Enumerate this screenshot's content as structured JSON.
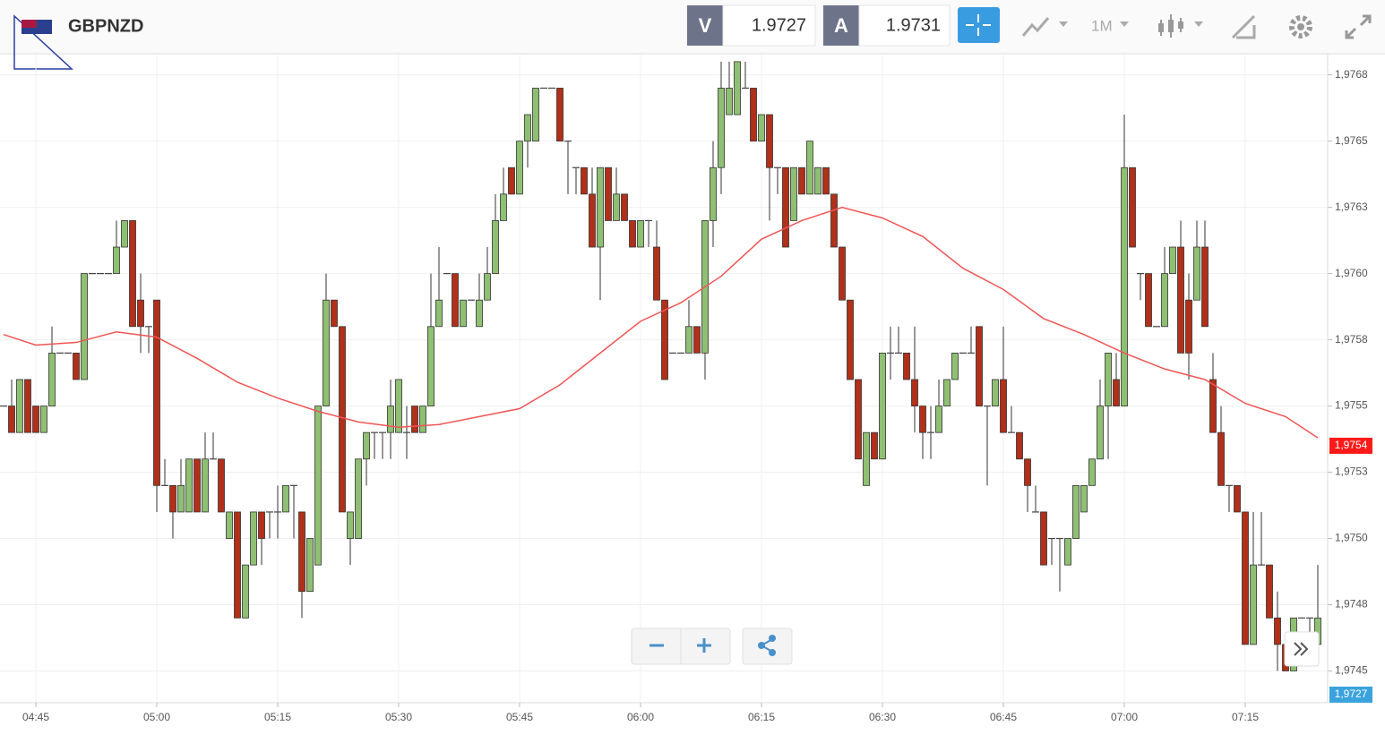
{
  "header": {
    "symbol": "GBPNZD",
    "sell_label": "V",
    "sell_price": "1.9727",
    "buy_label": "A",
    "buy_price": "1.9731",
    "timeframe": "1M"
  },
  "chart_data": {
    "type": "candlestick",
    "x": [
      "04:41",
      "04:42",
      "04:43",
      "04:44",
      "04:45",
      "04:46",
      "04:47",
      "04:48",
      "04:49",
      "04:50",
      "04:51",
      "04:52",
      "04:53",
      "04:54",
      "04:55",
      "04:56",
      "04:57",
      "04:58",
      "04:59",
      "05:00",
      "05:01",
      "05:02",
      "05:03",
      "05:04",
      "05:05",
      "05:06",
      "05:07",
      "05:08",
      "05:09",
      "05:10",
      "05:11",
      "05:12",
      "05:13",
      "05:14",
      "05:15",
      "05:16",
      "05:17",
      "05:18",
      "05:19",
      "05:20",
      "05:21",
      "05:22",
      "05:23",
      "05:24",
      "05:25",
      "05:26",
      "05:27",
      "05:28",
      "05:29",
      "05:30",
      "05:31",
      "05:32",
      "05:33",
      "05:34",
      "05:35",
      "05:36",
      "05:37",
      "05:38",
      "05:39",
      "05:40",
      "05:41",
      "05:42",
      "05:43",
      "05:44",
      "05:45",
      "05:46",
      "05:47",
      "05:48",
      "05:49",
      "05:50",
      "05:51",
      "05:52",
      "05:53",
      "05:54",
      "05:55",
      "05:56",
      "05:57",
      "05:58",
      "05:59",
      "06:00",
      "06:01",
      "06:02",
      "06:03",
      "06:04",
      "06:05",
      "06:06",
      "06:07",
      "06:08",
      "06:09",
      "06:10",
      "06:11",
      "06:12",
      "06:13",
      "06:14",
      "06:15",
      "06:16",
      "06:17",
      "06:18",
      "06:19",
      "06:20",
      "06:21",
      "06:22",
      "06:23",
      "06:24",
      "06:25",
      "06:26",
      "06:27",
      "06:28",
      "06:29",
      "06:30",
      "06:31",
      "06:32",
      "06:33",
      "06:34",
      "06:35",
      "06:36",
      "06:37",
      "06:38",
      "06:39",
      "06:40",
      "06:41",
      "06:42",
      "06:43",
      "06:44",
      "06:45",
      "06:46",
      "06:47",
      "06:48",
      "06:49",
      "06:50",
      "06:51",
      "06:52",
      "06:53",
      "06:54",
      "06:55",
      "06:56",
      "06:57",
      "06:58",
      "06:59",
      "07:00",
      "07:01",
      "07:02",
      "07:03",
      "07:04",
      "07:05",
      "07:06",
      "07:07",
      "07:08",
      "07:09",
      "07:10",
      "07:11",
      "07:12",
      "07:13",
      "07:14",
      "07:15",
      "07:16",
      "07:17",
      "07:18",
      "07:19",
      "07:20",
      "07:21",
      "07:22",
      "07:23",
      "07:24"
    ],
    "open": [
      1.9755,
      1.9755,
      1.9754,
      1.9756,
      1.9755,
      1.9754,
      1.9755,
      1.9757,
      1.9757,
      1.9757,
      1.9756,
      1.976,
      1.976,
      1.976,
      1.976,
      1.9761,
      1.9762,
      1.9759,
      1.9758,
      1.9759,
      1.9752,
      1.9752,
      1.9751,
      1.9751,
      1.9753,
      1.9751,
      1.9753,
      1.9753,
      1.975,
      1.9751,
      1.9747,
      1.9749,
      1.9751,
      1.9751,
      1.9751,
      1.9751,
      1.9752,
      1.9751,
      1.9748,
      1.9749,
      1.9755,
      1.9759,
      1.9758,
      1.975,
      1.975,
      1.9753,
      1.9754,
      1.9754,
      1.9754,
      1.9754,
      1.9754,
      1.9755,
      1.9754,
      1.9755,
      1.9758,
      1.976,
      1.976,
      1.9758,
      1.9759,
      1.9758,
      1.9759,
      1.976,
      1.9762,
      1.9764,
      1.9763,
      1.9765,
      1.9765,
      1.9767,
      1.9767,
      1.9767,
      1.9765,
      1.9764,
      1.9764,
      1.9763,
      1.9761,
      1.9764,
      1.9762,
      1.9763,
      1.9762,
      1.9761,
      1.9762,
      1.9761,
      1.9759,
      1.9757,
      1.9757,
      1.9757,
      1.9758,
      1.9757,
      1.9762,
      1.9764,
      1.9766,
      1.9766,
      1.9767,
      1.9767,
      1.9765,
      1.9766,
      1.9764,
      1.9764,
      1.9762,
      1.9764,
      1.9763,
      1.9763,
      1.9764,
      1.9763,
      1.9761,
      1.9759,
      1.9756,
      1.9752,
      1.9754,
      1.9753,
      1.9757,
      1.9757,
      1.9757,
      1.9756,
      1.9755,
      1.9754,
      1.9754,
      1.9755,
      1.9756,
      1.9757,
      1.9757,
      1.9758,
      1.9755,
      1.9755,
      1.9756,
      1.9754,
      1.9754,
      1.9753,
      1.9751,
      1.9751,
      1.975,
      1.975,
      1.9749,
      1.975,
      1.9751,
      1.9752,
      1.9753,
      1.9755,
      1.9756,
      1.9755,
      1.9764,
      1.976,
      1.976,
      1.9758,
      1.9758,
      1.976,
      1.9761,
      1.9759,
      1.9759,
      1.9761,
      1.9756,
      1.9754,
      1.9752,
      1.9752,
      1.9751,
      1.9746,
      1.9749,
      1.9749,
      1.9747,
      1.9746,
      1.9745,
      1.9747,
      1.9747,
      1.9746
    ],
    "high": [
      1.9755,
      1.9756,
      1.9756,
      1.9756,
      1.9755,
      1.9755,
      1.9758,
      1.9757,
      1.9757,
      1.9757,
      1.976,
      1.976,
      1.976,
      1.976,
      1.9762,
      1.9762,
      1.9762,
      1.976,
      1.9758,
      1.9759,
      1.9753,
      1.9752,
      1.9753,
      1.9753,
      1.9753,
      1.9754,
      1.9754,
      1.9753,
      1.9751,
      1.9751,
      1.9749,
      1.9751,
      1.9751,
      1.9751,
      1.9752,
      1.9752,
      1.9752,
      1.9751,
      1.975,
      1.9755,
      1.976,
      1.9759,
      1.9758,
      1.9751,
      1.9753,
      1.9754,
      1.9754,
      1.9754,
      1.9756,
      1.9756,
      1.9755,
      1.9755,
      1.9755,
      1.976,
      1.9761,
      1.976,
      1.976,
      1.9759,
      1.9759,
      1.976,
      1.9761,
      1.9763,
      1.9764,
      1.9764,
      1.9765,
      1.9766,
      1.9767,
      1.9767,
      1.9767,
      1.9767,
      1.9765,
      1.9764,
      1.9764,
      1.9764,
      1.9764,
      1.9764,
      1.9764,
      1.9763,
      1.9762,
      1.9762,
      1.9762,
      1.9762,
      1.9759,
      1.9757,
      1.9757,
      1.9759,
      1.9758,
      1.9762,
      1.9765,
      1.9768,
      1.9768,
      1.9768,
      1.9768,
      1.9767,
      1.9766,
      1.9766,
      1.9764,
      1.9764,
      1.9764,
      1.9764,
      1.9765,
      1.9764,
      1.9764,
      1.9763,
      1.9761,
      1.9759,
      1.9756,
      1.9754,
      1.9754,
      1.9757,
      1.9758,
      1.9758,
      1.9757,
      1.9758,
      1.9755,
      1.9755,
      1.9756,
      1.9756,
      1.9757,
      1.9757,
      1.9758,
      1.9758,
      1.9755,
      1.9756,
      1.9758,
      1.9755,
      1.9754,
      1.9753,
      1.9752,
      1.9751,
      1.975,
      1.975,
      1.975,
      1.9752,
      1.9752,
      1.9753,
      1.9756,
      1.9757,
      1.9757,
      1.9766,
      1.9764,
      1.976,
      1.976,
      1.9758,
      1.9761,
      1.9761,
      1.9762,
      1.976,
      1.9762,
      1.9762,
      1.9757,
      1.9755,
      1.9752,
      1.9752,
      1.9751,
      1.9751,
      1.9751,
      1.9749,
      1.9748,
      1.9746,
      1.9747,
      1.9747,
      1.9747,
      1.9749
    ],
    "low": [
      1.9755,
      1.9754,
      1.9754,
      1.9754,
      1.9754,
      1.9754,
      1.9755,
      1.9757,
      1.9757,
      1.9756,
      1.9756,
      1.976,
      1.976,
      1.976,
      1.976,
      1.9761,
      1.9758,
      1.9757,
      1.9757,
      1.9751,
      1.9752,
      1.975,
      1.9751,
      1.9751,
      1.9751,
      1.9751,
      1.9753,
      1.9751,
      1.975,
      1.9747,
      1.9747,
      1.9749,
      1.9749,
      1.975,
      1.975,
      1.9751,
      1.975,
      1.9747,
      1.9748,
      1.9749,
      1.9755,
      1.9758,
      1.9751,
      1.9749,
      1.975,
      1.9752,
      1.9753,
      1.9753,
      1.9753,
      1.9754,
      1.9753,
      1.9754,
      1.9754,
      1.9755,
      1.9758,
      1.976,
      1.9758,
      1.9758,
      1.9759,
      1.9758,
      1.9759,
      1.976,
      1.9762,
      1.9763,
      1.9763,
      1.9764,
      1.9765,
      1.9767,
      1.9767,
      1.9765,
      1.9763,
      1.9763,
      1.9763,
      1.9761,
      1.9759,
      1.9762,
      1.9762,
      1.9762,
      1.9761,
      1.9761,
      1.9761,
      1.9759,
      1.9756,
      1.9757,
      1.9757,
      1.9757,
      1.9757,
      1.9756,
      1.9761,
      1.9763,
      1.9766,
      1.9766,
      1.9767,
      1.9765,
      1.9765,
      1.9762,
      1.9763,
      1.9761,
      1.9762,
      1.9763,
      1.9763,
      1.9763,
      1.9763,
      1.9761,
      1.9759,
      1.9756,
      1.9753,
      1.9752,
      1.9753,
      1.9753,
      1.9756,
      1.9757,
      1.9756,
      1.9754,
      1.9753,
      1.9753,
      1.9754,
      1.9755,
      1.9756,
      1.9757,
      1.9757,
      1.9755,
      1.9752,
      1.9755,
      1.9754,
      1.9754,
      1.9753,
      1.9751,
      1.9751,
      1.9749,
      1.9749,
      1.9748,
      1.9749,
      1.975,
      1.9751,
      1.9752,
      1.9753,
      1.9753,
      1.9755,
      1.9755,
      1.9761,
      1.9759,
      1.9758,
      1.9758,
      1.9758,
      1.976,
      1.9757,
      1.9756,
      1.9759,
      1.9758,
      1.9754,
      1.9752,
      1.9751,
      1.9751,
      1.9746,
      1.9746,
      1.9749,
      1.9747,
      1.9745,
      1.9745,
      1.9745,
      1.9747,
      1.9746,
      1.9746
    ],
    "close": [
      1.9755,
      1.9754,
      1.9756,
      1.9754,
      1.9754,
      1.9755,
      1.9757,
      1.9757,
      1.9757,
      1.9756,
      1.976,
      1.976,
      1.976,
      1.976,
      1.9761,
      1.9762,
      1.9758,
      1.9758,
      1.9758,
      1.9752,
      1.9752,
      1.9751,
      1.9752,
      1.9753,
      1.9751,
      1.9753,
      1.9753,
      1.9751,
      1.9751,
      1.9747,
      1.9749,
      1.9751,
      1.975,
      1.9751,
      1.9751,
      1.9752,
      1.9752,
      1.9748,
      1.975,
      1.9755,
      1.9759,
      1.9758,
      1.9751,
      1.9751,
      1.9753,
      1.9754,
      1.9754,
      1.9754,
      1.9755,
      1.9756,
      1.9754,
      1.9754,
      1.9755,
      1.9758,
      1.9759,
      1.976,
      1.9758,
      1.9759,
      1.9759,
      1.9759,
      1.976,
      1.9762,
      1.9763,
      1.9763,
      1.9765,
      1.9766,
      1.9767,
      1.9767,
      1.9767,
      1.9765,
      1.9765,
      1.9764,
      1.9763,
      1.9761,
      1.9764,
      1.9762,
      1.9763,
      1.9762,
      1.9761,
      1.9762,
      1.9762,
      1.9759,
      1.9756,
      1.9757,
      1.9757,
      1.9758,
      1.9757,
      1.9762,
      1.9764,
      1.9767,
      1.9767,
      1.9768,
      1.9767,
      1.9765,
      1.9766,
      1.9764,
      1.9764,
      1.9761,
      1.9764,
      1.9763,
      1.9765,
      1.9764,
      1.9763,
      1.9761,
      1.9759,
      1.9756,
      1.9753,
      1.9754,
      1.9753,
      1.9757,
      1.9757,
      1.9757,
      1.9756,
      1.9755,
      1.9754,
      1.9754,
      1.9755,
      1.9756,
      1.9757,
      1.9757,
      1.9757,
      1.9755,
      1.9755,
      1.9756,
      1.9754,
      1.9754,
      1.9753,
      1.9752,
      1.9751,
      1.9749,
      1.975,
      1.975,
      1.975,
      1.9752,
      1.9752,
      1.9753,
      1.9755,
      1.9757,
      1.9755,
      1.9764,
      1.9761,
      1.976,
      1.9758,
      1.9758,
      1.976,
      1.9761,
      1.9757,
      1.9757,
      1.9761,
      1.9758,
      1.9754,
      1.9752,
      1.9752,
      1.9751,
      1.9746,
      1.9749,
      1.9749,
      1.9747,
      1.9746,
      1.9745,
      1.9747,
      1.9747,
      1.9747,
      1.9747
    ],
    "up_color": "#8fbf73",
    "down_color": "#b0301a",
    "moving_average": {
      "color": "#f05555",
      "x": [
        "04:41",
        "04:45",
        "04:50",
        "04:55",
        "05:00",
        "05:05",
        "05:10",
        "05:15",
        "05:20",
        "05:25",
        "05:30",
        "05:35",
        "05:40",
        "05:45",
        "05:50",
        "05:55",
        "06:00",
        "06:05",
        "06:10",
        "06:15",
        "06:20",
        "06:25",
        "06:30",
        "06:35",
        "06:40",
        "06:45",
        "06:50",
        "06:55",
        "07:00",
        "07:05",
        "07:10",
        "07:15",
        "07:20",
        "07:24"
      ],
      "values": [
        1.97577,
        1.97573,
        1.97574,
        1.97578,
        1.97576,
        1.97568,
        1.97559,
        1.97553,
        1.97548,
        1.97544,
        1.97542,
        1.97543,
        1.97546,
        1.97549,
        1.97558,
        1.9757,
        1.97582,
        1.97589,
        1.97599,
        1.97613,
        1.9762,
        1.97625,
        1.97621,
        1.97614,
        1.97602,
        1.97594,
        1.97583,
        1.97577,
        1.9757,
        1.97564,
        1.9756,
        1.97551,
        1.97546,
        1.97538
      ]
    },
    "last_price": {
      "value": 1.97535,
      "label": "1,9754"
    },
    "bid_price": {
      "value": 1.9727,
      "label": "1,9727"
    },
    "ylim": [
      1.97438,
      1.97683
    ],
    "yticks": [
      {
        "value": 1.9745,
        "label": "1,9745"
      },
      {
        "value": 1.97475,
        "label": "1,9748"
      },
      {
        "value": 1.975,
        "label": "1,9750"
      },
      {
        "value": 1.97525,
        "label": "1,9753"
      },
      {
        "value": 1.9755,
        "label": "1,9755"
      },
      {
        "value": 1.97575,
        "label": "1,9758"
      },
      {
        "value": 1.976,
        "label": "1,9760"
      },
      {
        "value": 1.97625,
        "label": "1,9763"
      },
      {
        "value": 1.9765,
        "label": "1,9765"
      },
      {
        "value": 1.97675,
        "label": "1,9768"
      }
    ],
    "xticks": [
      "04:45",
      "05:00",
      "05:15",
      "05:30",
      "05:45",
      "06:00",
      "06:15",
      "06:30",
      "06:45",
      "07:00",
      "07:15"
    ],
    "grid": true
  }
}
